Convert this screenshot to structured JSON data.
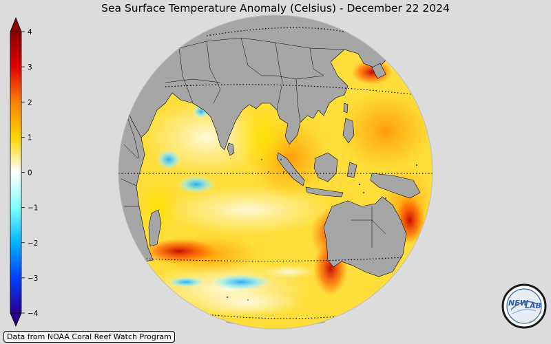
{
  "title": "Sea Surface Temperature Anomaly (Celsius) - December 22 2024",
  "credit": "Data from NOAA Coral Reef Watch Program",
  "logo": {
    "text_left": "NEW",
    "text_right": "LAB"
  },
  "colorbar": {
    "ticks": [
      {
        "value": 4,
        "label": "4"
      },
      {
        "value": 3,
        "label": "3"
      },
      {
        "value": 2,
        "label": "2"
      },
      {
        "value": 1,
        "label": "1"
      },
      {
        "value": 0,
        "label": "0"
      },
      {
        "value": -1,
        "label": "−1"
      },
      {
        "value": -2,
        "label": "−2"
      },
      {
        "value": -3,
        "label": "−3"
      },
      {
        "value": -4,
        "label": "−4"
      }
    ],
    "colors": {
      "p4": "#8b0000",
      "p3": "#e00000",
      "p2": "#ff8000",
      "p1": "#ffd400",
      "zero": "#ffffff",
      "m1": "#80ffff",
      "m2": "#00b4ff",
      "m3": "#0040ff",
      "m4": "#2a0090"
    }
  },
  "map": {
    "land_color": "#a6a6a6",
    "ocean_base_color": "#ffdf40"
  }
}
